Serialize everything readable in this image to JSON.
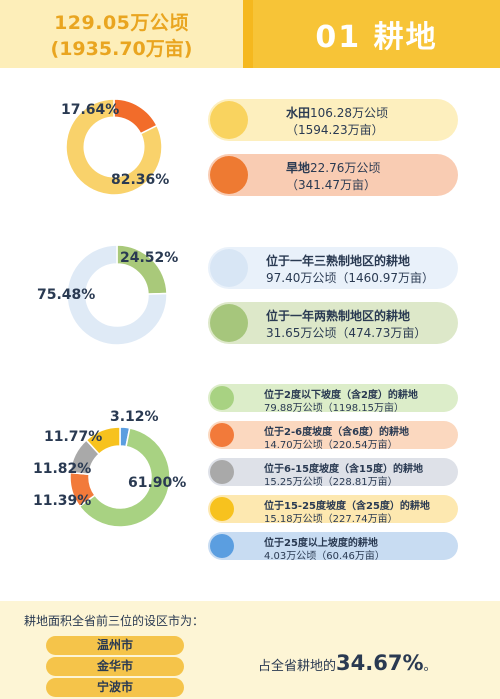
{
  "header": {
    "total_ha": "129.05万公顷",
    "total_mu": "(1935.70万亩)",
    "section_title": "01 耕地"
  },
  "donut1": {
    "values": [
      17.64,
      82.36
    ],
    "colors": [
      "#f26c2a",
      "#f9d26b"
    ],
    "labels": [
      "17.64%",
      "82.36%"
    ]
  },
  "donut2": {
    "values": [
      24.52,
      75.48
    ],
    "colors": [
      "#a9c97a",
      "#dfeaf6"
    ],
    "labels": [
      "24.52%",
      "75.48%"
    ]
  },
  "donut3": {
    "values": [
      3.12,
      61.9,
      11.39,
      11.82,
      11.77
    ],
    "colors": [
      "#5b9ee0",
      "#a8d282",
      "#f27a3a",
      "#a9a9a9",
      "#f7c21e"
    ],
    "labels": [
      "3.12%",
      "61.90%",
      "11.39%",
      "11.82%",
      "11.77%"
    ]
  },
  "group1": [
    {
      "name": "水田",
      "ha": "106.28万公顷",
      "mu": "（1594.23万亩）",
      "bg": "#fdefbe",
      "dot": "#f9d35f"
    },
    {
      "name": "旱地",
      "ha": "22.76万公顷",
      "mu": "（341.47万亩）",
      "bg": "#f9ccb3",
      "dot": "#ee7a32"
    }
  ],
  "group2": [
    {
      "name": "位于一年三熟制地区的耕地",
      "detail": "97.40万公顷（1460.97万亩）",
      "bg": "#e9f1fa",
      "dot": "#d8e6f5"
    },
    {
      "name": "位于一年两熟制地区的耕地",
      "detail": "31.65万公顷（474.73万亩）",
      "bg": "#dde8c9",
      "dot": "#a6c67c"
    }
  ],
  "group3": [
    {
      "name": "位于2度以下坡度（含2度）的耕地",
      "detail": "79.88万公顷（1198.15万亩）",
      "bg": "#dcedc9",
      "dot": "#a8d282"
    },
    {
      "name": "位于2-6度坡度（含6度）的耕地",
      "detail": "14.70万公顷（220.54万亩）",
      "bg": "#fbd8bf",
      "dot": "#f27a3a"
    },
    {
      "name": "位于6-15度坡度（含15度）的耕地",
      "detail": "15.25万公顷（228.81万亩）",
      "bg": "#dee1e8",
      "dot": "#a9a9a9"
    },
    {
      "name": "位于15-25度坡度（含25度）的耕地",
      "detail": "15.18万公顷（227.74万亩）",
      "bg": "#fde8b0",
      "dot": "#f7c21e"
    },
    {
      "name": "位于25度以上坡度的耕地",
      "detail": "4.03万公顷（60.46万亩）",
      "bg": "#c8dcf2",
      "dot": "#5b9ee0"
    }
  ],
  "footer": {
    "title": "耕地面积全省前三位的设区市为：",
    "cities": [
      "温州市",
      "金华市",
      "宁波市"
    ],
    "share_prefix": "占全省耕地的",
    "share_value": "34.67%",
    "share_suffix": "。"
  }
}
